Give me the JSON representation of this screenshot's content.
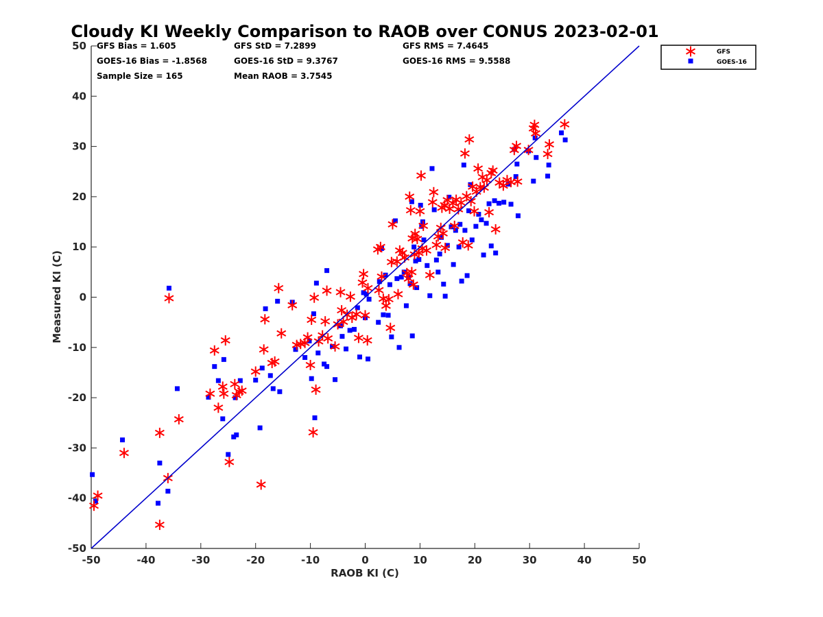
{
  "chart_data": {
    "type": "scatter",
    "title": "Cloudy KI Weekly Comparison to RAOB over CONUS 2023-02-01",
    "xlabel": "RAOB KI (C)",
    "ylabel": "Measured KI (C)",
    "xlim": [
      -50,
      50
    ],
    "ylim": [
      -50,
      50
    ],
    "xticks": [
      "-50",
      "-40",
      "-30",
      "-20",
      "-10",
      "0",
      "10",
      "20",
      "30",
      "40",
      "50"
    ],
    "yticks": [
      "-50",
      "-40",
      "-30",
      "-20",
      "-10",
      "0",
      "10",
      "20",
      "30",
      "40",
      "50"
    ],
    "grid": false,
    "legend_position": "top-right",
    "stats": [
      "GFS Bias = 1.605",
      "GFS StD = 7.2899",
      "GFS RMS = 7.4645",
      "GOES-16 Bias = -1.8568",
      "GOES-16 StD = 9.3767",
      "GOES-16 RMS = 9.5588",
      "Sample Size = 165",
      "Mean RAOB = 3.7545"
    ],
    "reference_line": {
      "type": "one-to-one",
      "color": "#0000cc"
    },
    "series": [
      {
        "name": "GFS",
        "marker": "asterisk",
        "color": "#ff0000",
        "points": [
          [
            -49.5,
            -41.5
          ],
          [
            -48.8,
            -39.5
          ],
          [
            -44,
            -31
          ],
          [
            -37.5,
            -45.3
          ],
          [
            -37.5,
            -27
          ],
          [
            -36,
            -36
          ],
          [
            -35.8,
            -0.2
          ],
          [
            -34,
            -24.3
          ],
          [
            -28.3,
            -19.2
          ],
          [
            -27.5,
            -10.6
          ],
          [
            -26.8,
            -22
          ],
          [
            -26,
            -17.8
          ],
          [
            -25.8,
            -19.2
          ],
          [
            -25.5,
            -8.6
          ],
          [
            -24.8,
            -32.8
          ],
          [
            -23.8,
            -17.3
          ],
          [
            -23.5,
            -19.5
          ],
          [
            -23,
            -18.8
          ],
          [
            -22.5,
            -18.6
          ],
          [
            -20,
            -14.8
          ],
          [
            -19,
            -37.3
          ],
          [
            -18.5,
            -10.4
          ],
          [
            -18.3,
            -4.4
          ],
          [
            -17,
            -13.1
          ],
          [
            -16.5,
            -12.8
          ],
          [
            -15.8,
            1.8
          ],
          [
            -15.3,
            -7.2
          ],
          [
            -13.3,
            -1.6
          ],
          [
            -12.5,
            -9.5
          ],
          [
            -11.8,
            -9.3
          ],
          [
            -11,
            -9.1
          ],
          [
            -10.5,
            -8
          ],
          [
            -10,
            -13.5
          ],
          [
            -9.8,
            -4.5
          ],
          [
            -9.5,
            -26.9
          ],
          [
            -9.3,
            -0.1
          ],
          [
            -9,
            -18.4
          ],
          [
            -8.5,
            -8.8
          ],
          [
            -7.8,
            -7.6
          ],
          [
            -7.3,
            -4.8
          ],
          [
            -7,
            1.3
          ],
          [
            -6.8,
            -8.2
          ],
          [
            -5.5,
            -9.8
          ],
          [
            -5,
            -5.4
          ],
          [
            -4.5,
            1
          ],
          [
            -4.3,
            -2.6
          ],
          [
            -4,
            -4.9
          ],
          [
            -3.3,
            -3.5
          ],
          [
            -2.7,
            0.1
          ],
          [
            -2.4,
            -4.1
          ],
          [
            -1.6,
            -3.4
          ],
          [
            -1.2,
            -8.1
          ],
          [
            -0.5,
            2.9
          ],
          [
            -0.3,
            4.6
          ],
          [
            0,
            -3.6
          ],
          [
            0.4,
            -8.6
          ],
          [
            0.5,
            1.8
          ],
          [
            2.3,
            9.5
          ],
          [
            2.8,
            10
          ],
          [
            2.5,
            1.4
          ],
          [
            3,
            4.1
          ],
          [
            3.3,
            -0.3
          ],
          [
            3.8,
            -1.7
          ],
          [
            4.3,
            -0.4
          ],
          [
            4.8,
            7
          ],
          [
            4.6,
            -6.1
          ],
          [
            5,
            14.5
          ],
          [
            5.8,
            7.1
          ],
          [
            6,
            0.6
          ],
          [
            6.3,
            9.3
          ],
          [
            6.8,
            8.8
          ],
          [
            7.2,
            7.9
          ],
          [
            7.6,
            4.8
          ],
          [
            7.9,
            3.7
          ],
          [
            8.1,
            20
          ],
          [
            8.3,
            17.3
          ],
          [
            8.5,
            5
          ],
          [
            8.6,
            11.7
          ],
          [
            8.8,
            2.5
          ],
          [
            9,
            8.5
          ],
          [
            9.1,
            12.6
          ],
          [
            9.5,
            11.6
          ],
          [
            9.8,
            8.8
          ],
          [
            10,
            17.1
          ],
          [
            10.2,
            24.2
          ],
          [
            10.4,
            9.7
          ],
          [
            10.6,
            14.2
          ],
          [
            11.2,
            9.3
          ],
          [
            11.8,
            4.4
          ],
          [
            12.3,
            18.9
          ],
          [
            12.5,
            20.9
          ],
          [
            13,
            10.4
          ],
          [
            13.3,
            12.1
          ],
          [
            13.8,
            13.8
          ],
          [
            14,
            17.8
          ],
          [
            14.2,
            12.7
          ],
          [
            14.5,
            18.3
          ],
          [
            14.6,
            9.8
          ],
          [
            15,
            19.3
          ],
          [
            15.4,
            17.6
          ],
          [
            16,
            18.7
          ],
          [
            16.3,
            14.2
          ],
          [
            16.6,
            19.4
          ],
          [
            17,
            17.5
          ],
          [
            17.5,
            18.8
          ],
          [
            17.8,
            10.9
          ],
          [
            18.2,
            28.6
          ],
          [
            18.5,
            20.1
          ],
          [
            18.8,
            10.3
          ],
          [
            19,
            31.4
          ],
          [
            19.3,
            19.1
          ],
          [
            19.6,
            22
          ],
          [
            19.9,
            17.1
          ],
          [
            20.3,
            21
          ],
          [
            20.6,
            25.6
          ],
          [
            21,
            21.9
          ],
          [
            21.4,
            23.9
          ],
          [
            21.7,
            21.8
          ],
          [
            22.2,
            23.3
          ],
          [
            22.6,
            16.9
          ],
          [
            23,
            24.7
          ],
          [
            23.3,
            25.2
          ],
          [
            23.8,
            13.5
          ],
          [
            24.5,
            22.8
          ],
          [
            25.2,
            22.2
          ],
          [
            25.9,
            23.3
          ],
          [
            26.6,
            22.9
          ],
          [
            27.2,
            29.3
          ],
          [
            27.6,
            30.1
          ],
          [
            27.8,
            23
          ],
          [
            29.8,
            29.3
          ],
          [
            30.7,
            33.6
          ],
          [
            30.9,
            34.3
          ],
          [
            31.1,
            32.6
          ],
          [
            33.3,
            28.5
          ],
          [
            33.6,
            30.4
          ],
          [
            36.4,
            34.4
          ]
        ]
      },
      {
        "name": "GOES-16",
        "marker": "square",
        "color": "#0000ff",
        "points": [
          [
            -49.8,
            -35.3
          ],
          [
            -49.2,
            -40.6
          ],
          [
            -44.3,
            -28.4
          ],
          [
            -37.8,
            -41
          ],
          [
            -37.5,
            -33
          ],
          [
            -36,
            -38.6
          ],
          [
            -35.8,
            1.8
          ],
          [
            -34.3,
            -18.2
          ],
          [
            -28.6,
            -19.9
          ],
          [
            -27.5,
            -13.8
          ],
          [
            -26.8,
            -16.6
          ],
          [
            -26,
            -24.2
          ],
          [
            -25.8,
            -12.4
          ],
          [
            -25,
            -31.3
          ],
          [
            -24,
            -27.8
          ],
          [
            -23.7,
            -20
          ],
          [
            -23.5,
            -27.4
          ],
          [
            -22.8,
            -16.6
          ],
          [
            -20,
            -16.5
          ],
          [
            -19.2,
            -26
          ],
          [
            -18.8,
            -14.1
          ],
          [
            -18.2,
            -2.3
          ],
          [
            -17.3,
            -15.6
          ],
          [
            -16.8,
            -18.2
          ],
          [
            -16,
            -0.8
          ],
          [
            -15.6,
            -18.8
          ],
          [
            -13.3,
            -1
          ],
          [
            -12.7,
            -10.4
          ],
          [
            -11,
            -12
          ],
          [
            -10.2,
            -8.7
          ],
          [
            -9.8,
            -16.2
          ],
          [
            -9.4,
            -3.3
          ],
          [
            -9.2,
            -24
          ],
          [
            -8.9,
            2.8
          ],
          [
            -8.6,
            -11.1
          ],
          [
            -7.5,
            -13.3
          ],
          [
            -7,
            5.3
          ],
          [
            -7,
            -13.8
          ],
          [
            -6,
            -9.8
          ],
          [
            -5.5,
            -16.4
          ],
          [
            -4.5,
            -5.7
          ],
          [
            -4.2,
            -7.8
          ],
          [
            -3.5,
            -10.3
          ],
          [
            -2.8,
            -6.6
          ],
          [
            -2,
            -6.4
          ],
          [
            -1.4,
            -2.1
          ],
          [
            -1,
            -11.9
          ],
          [
            -0.3,
            0.9
          ],
          [
            0,
            -4.1
          ],
          [
            0.2,
            0.6
          ],
          [
            0.5,
            -12.3
          ],
          [
            0.7,
            -0.4
          ],
          [
            2.4,
            -5
          ],
          [
            2.6,
            3.1
          ],
          [
            3,
            9.7
          ],
          [
            3.3,
            -3.5
          ],
          [
            3.7,
            4.4
          ],
          [
            4.2,
            -3.6
          ],
          [
            4.5,
            2.5
          ],
          [
            4.8,
            -7.9
          ],
          [
            5.5,
            15.2
          ],
          [
            5.8,
            3.7
          ],
          [
            6.2,
            -10
          ],
          [
            6.6,
            4
          ],
          [
            7.1,
            5
          ],
          [
            7.5,
            -1.7
          ],
          [
            7.9,
            3.9
          ],
          [
            8.2,
            2.7
          ],
          [
            8.5,
            19
          ],
          [
            8.6,
            -7.7
          ],
          [
            8.9,
            10
          ],
          [
            9.2,
            7.2
          ],
          [
            9.4,
            1.9
          ],
          [
            9.8,
            7.5
          ],
          [
            10.1,
            18.3
          ],
          [
            10.3,
            14.1
          ],
          [
            10.5,
            15
          ],
          [
            10.7,
            11.4
          ],
          [
            11.3,
            6.3
          ],
          [
            11.8,
            0.3
          ],
          [
            12.2,
            25.6
          ],
          [
            12.6,
            17.4
          ],
          [
            13,
            7.4
          ],
          [
            13.3,
            5
          ],
          [
            13.6,
            8.6
          ],
          [
            13.9,
            11.9
          ],
          [
            14.3,
            2.6
          ],
          [
            14.6,
            0.2
          ],
          [
            15,
            10.3
          ],
          [
            15.3,
            19.9
          ],
          [
            15.7,
            14
          ],
          [
            16.1,
            6.5
          ],
          [
            16.5,
            13.3
          ],
          [
            17.1,
            10
          ],
          [
            17.3,
            14.5
          ],
          [
            17.6,
            3.2
          ],
          [
            18,
            26.3
          ],
          [
            18.2,
            13.3
          ],
          [
            18.6,
            4.3
          ],
          [
            18.9,
            17.2
          ],
          [
            19.2,
            22.4
          ],
          [
            19.5,
            11.4
          ],
          [
            20.2,
            14.1
          ],
          [
            20.7,
            16.5
          ],
          [
            21.2,
            15.4
          ],
          [
            21.6,
            8.4
          ],
          [
            22.1,
            14.7
          ],
          [
            22.6,
            18.6
          ],
          [
            23,
            10.2
          ],
          [
            23.6,
            19.2
          ],
          [
            23.8,
            8.8
          ],
          [
            24.4,
            18.7
          ],
          [
            25.3,
            18.9
          ],
          [
            26.1,
            22.5
          ],
          [
            26.6,
            18.5
          ],
          [
            27.2,
            29.4
          ],
          [
            27.5,
            24
          ],
          [
            27.7,
            26.5
          ],
          [
            27.9,
            16.2
          ],
          [
            29.8,
            29.1
          ],
          [
            30.7,
            23.1
          ],
          [
            31,
            31.7
          ],
          [
            31.2,
            27.8
          ],
          [
            33.3,
            24.1
          ],
          [
            33.5,
            26.3
          ],
          [
            35.8,
            32.7
          ],
          [
            36.5,
            31.3
          ]
        ]
      }
    ]
  }
}
